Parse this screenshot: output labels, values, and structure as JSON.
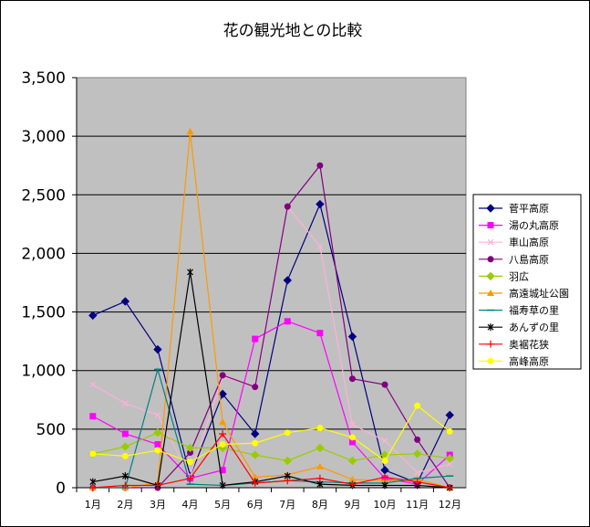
{
  "chart_data": {
    "type": "line",
    "title": "花の観光地との比較",
    "xlabel": "",
    "ylabel": "",
    "categories": [
      "1月",
      "2月",
      "3月",
      "4月",
      "5月",
      "6月",
      "7月",
      "8月",
      "9月",
      "10月",
      "11月",
      "12月"
    ],
    "ylim": [
      0,
      3500
    ],
    "y_ticks": [
      "0",
      "500",
      "1,000",
      "1,500",
      "2,000",
      "2,500",
      "3,000",
      "3,500"
    ],
    "y_tick_values": [
      0,
      500,
      1000,
      1500,
      2000,
      2500,
      3000,
      3500
    ],
    "grid": true,
    "plot_background": "#c0c0c0",
    "legend_position": "right",
    "series": [
      {
        "name": "菅平高原",
        "color": "#000080",
        "marker": "diamond",
        "values": [
          1470,
          1590,
          1180,
          100,
          800,
          460,
          1770,
          2420,
          1290,
          150,
          40,
          620
        ]
      },
      {
        "name": "湯の丸高原",
        "color": "#ff00ff",
        "marker": "square",
        "values": [
          610,
          460,
          370,
          80,
          150,
          1270,
          1420,
          1320,
          390,
          80,
          30,
          280
        ]
      },
      {
        "name": "車山高原",
        "color": "#ffb0d8",
        "marker": "x",
        "values": [
          880,
          720,
          620,
          100,
          950,
          860,
          2400,
          2060,
          540,
          400,
          130,
          200
        ]
      },
      {
        "name": "八島高原",
        "color": "#800080",
        "marker": "circle",
        "values": [
          0,
          0,
          0,
          300,
          960,
          860,
          2400,
          2750,
          930,
          880,
          410,
          0
        ]
      },
      {
        "name": "羽広",
        "color": "#99cc00",
        "marker": "diamond",
        "values": [
          290,
          350,
          470,
          340,
          340,
          280,
          230,
          340,
          230,
          280,
          290,
          250
        ]
      },
      {
        "name": "高遠城址公園",
        "color": "#ff9900",
        "marker": "triangle",
        "values": [
          0,
          0,
          40,
          3040,
          560,
          90,
          110,
          180,
          70,
          60,
          70,
          0
        ]
      },
      {
        "name": "福寿草の里",
        "color": "#008080",
        "marker": "dash",
        "values": [
          0,
          0,
          1010,
          30,
          20,
          40,
          60,
          50,
          40,
          40,
          80,
          100
        ]
      },
      {
        "name": "あんずの里",
        "color": "#000000",
        "marker": "star",
        "values": [
          50,
          100,
          20,
          1840,
          20,
          50,
          100,
          30,
          20,
          20,
          20,
          0
        ]
      },
      {
        "name": "奥裾花狭",
        "color": "#ff0000",
        "marker": "plus",
        "values": [
          0,
          20,
          20,
          80,
          460,
          40,
          60,
          80,
          30,
          90,
          50,
          0
        ]
      },
      {
        "name": "高峰高原",
        "color": "#ffff00",
        "marker": "circle",
        "values": [
          290,
          270,
          320,
          220,
          370,
          380,
          470,
          510,
          430,
          230,
          700,
          480
        ]
      }
    ]
  }
}
